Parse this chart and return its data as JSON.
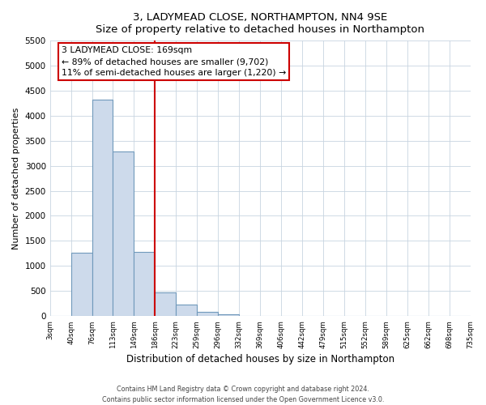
{
  "title": "3, LADYMEAD CLOSE, NORTHAMPTON, NN4 9SE",
  "subtitle": "Size of property relative to detached houses in Northampton",
  "xlabel": "Distribution of detached houses by size in Northampton",
  "ylabel": "Number of detached properties",
  "bin_labels": [
    "3sqm",
    "40sqm",
    "76sqm",
    "113sqm",
    "149sqm",
    "186sqm",
    "223sqm",
    "259sqm",
    "296sqm",
    "332sqm",
    "369sqm",
    "406sqm",
    "442sqm",
    "479sqm",
    "515sqm",
    "552sqm",
    "589sqm",
    "625sqm",
    "662sqm",
    "698sqm",
    "735sqm"
  ],
  "bar_values": [
    0,
    1270,
    4320,
    3280,
    1280,
    470,
    235,
    80,
    45,
    0,
    0,
    0,
    0,
    0,
    0,
    0,
    0,
    0,
    0,
    0
  ],
  "bar_color": "#cddaeb",
  "bar_edge_color": "#7099bb",
  "vline_x_idx": 5,
  "vline_color": "#cc0000",
  "annotation_title": "3 LADYMEAD CLOSE: 169sqm",
  "annotation_line1": "← 89% of detached houses are smaller (9,702)",
  "annotation_line2": "11% of semi-detached houses are larger (1,220) →",
  "annotation_box_color": "#cc0000",
  "ylim": [
    0,
    5500
  ],
  "yticks": [
    0,
    500,
    1000,
    1500,
    2000,
    2500,
    3000,
    3500,
    4000,
    4500,
    5000,
    5500
  ],
  "footer_line1": "Contains HM Land Registry data © Crown copyright and database right 2024.",
  "footer_line2": "Contains public sector information licensed under the Open Government Licence v3.0.",
  "bg_color": "#ffffff",
  "plot_bg_color": "#ffffff",
  "grid_color": "#c8d4e0"
}
